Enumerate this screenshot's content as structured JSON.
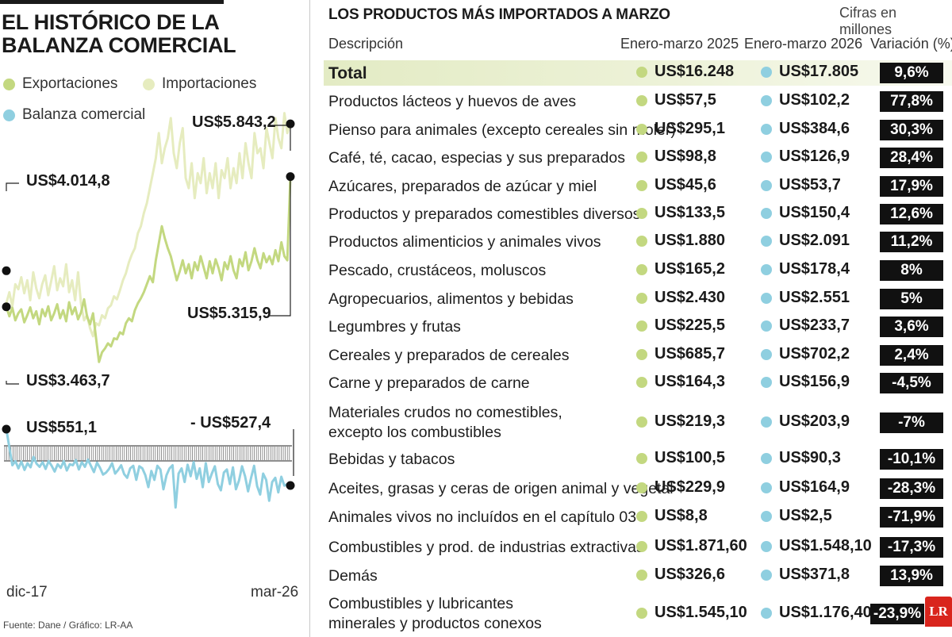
{
  "left": {
    "title_line1": "EL HISTÓRICO DE LA",
    "title_line2": "BALANZA COMERCIAL",
    "legend": {
      "exports": "Exportaciones",
      "imports": "Importaciones",
      "balance": "Balanza comercial"
    },
    "annotations": {
      "imports_last": "US$5.843,2",
      "exports_start": "US$4.014,8",
      "exports_last": "US$5.315,9",
      "exports_min": "US$3.463,7",
      "balance_start": "US$551,1",
      "balance_last": "- US$527,4"
    },
    "x_start": "dic-17",
    "x_end": "mar-26",
    "source": "Fuente: Dane / Gráfico: LR-AA"
  },
  "right": {
    "title": "LOS PRODUCTOS MÁS IMPORTADOS A MARZO",
    "units": "Cifras en millones",
    "headers": {
      "description": "Descripción",
      "col_2025": "Enero-marzo 2025",
      "col_2026": "Enero-marzo 2026",
      "variation": "Variación (%)"
    },
    "logo": "LR"
  },
  "colors": {
    "exports": "#c3d880",
    "imports": "#e6ecbf",
    "balance": "#8fcfe0",
    "variation_bg": "#111111",
    "total_band": "#e3ebc4",
    "logo": "#d9251d"
  },
  "chart_data": [
    {
      "type": "line",
      "title": "EL HISTÓRICO DE LA BALANZA COMERCIAL",
      "x_range": [
        "dic-17",
        "mar-26"
      ],
      "series": [
        {
          "name": "Exportaciones",
          "start": 4014.8,
          "min": 3463.7,
          "last": 5315.9,
          "values": [
            4014.8,
            3920,
            4005,
            3880,
            3950,
            3990,
            3860,
            3930,
            4010,
            3900,
            3970,
            3840,
            3990,
            3920,
            4020,
            3880,
            3950,
            4040,
            3900,
            3980,
            3870,
            4060,
            3940,
            4010,
            3890,
            3960,
            4090,
            3920,
            3840,
            3950,
            3700,
            3463.7,
            3560,
            3600,
            3650,
            3620,
            3700,
            3690,
            3760,
            3740,
            3850,
            3900,
            3870,
            3980,
            4050,
            4100,
            4160,
            4240,
            4320,
            4260,
            4480,
            4650,
            4820,
            4700,
            4600,
            4520,
            4400,
            4280,
            4370,
            4480,
            4350,
            4440,
            4300,
            4460,
            4380,
            4520,
            4410,
            4300,
            4470,
            4350,
            4490,
            4400,
            4280,
            4460,
            4390,
            4520,
            4380,
            4300,
            4490,
            4420,
            4560,
            4380,
            4470,
            4600,
            4480,
            4400,
            4550,
            4460,
            4520,
            4440,
            4580,
            4470,
            4660,
            4520,
            4480,
            5315.9
          ]
        },
        {
          "name": "Importaciones",
          "last": 5843.2,
          "values": [
            4050,
            4160,
            4020,
            4240,
            4190,
            4310,
            4150,
            4280,
            4080,
            4360,
            4200,
            4100,
            4240,
            4330,
            4130,
            4270,
            4420,
            4180,
            4300,
            4220,
            4440,
            4160,
            4280,
            4080,
            4360,
            4040,
            3880,
            3930,
            3800,
            3720,
            3850,
            3830,
            3930,
            3900,
            4000,
            4030,
            4120,
            4090,
            4180,
            4280,
            4350,
            4460,
            4540,
            4600,
            4750,
            4820,
            4950,
            5050,
            5200,
            5350,
            5500,
            5750,
            5450,
            5600,
            5700,
            5900,
            5550,
            5400,
            5650,
            5800,
            5300,
            5200,
            5450,
            5100,
            5350,
            5250,
            5500,
            5150,
            5350,
            5200,
            5450,
            5100,
            5380,
            5300,
            5500,
            5200,
            5400,
            5250,
            5550,
            5300,
            5650,
            5450,
            5300,
            5750,
            5550,
            5600,
            5400,
            5800,
            5650,
            5500,
            5900,
            5700,
            5600,
            5950,
            5750,
            5843.2
          ]
        },
        {
          "name": "Balanza comercial",
          "start": 551.1,
          "last": -527.4,
          "values": [
            551.1,
            200,
            -140,
            -60,
            -200,
            -70,
            -230,
            -100,
            -180,
            20,
            -110,
            -170,
            -80,
            -210,
            -60,
            -150,
            -260,
            -120,
            -190,
            -60,
            -240,
            -120,
            -140,
            -40,
            -220,
            -80,
            -170,
            -30,
            -150,
            -270,
            -90,
            -190,
            -320,
            -280,
            -210,
            -100,
            -300,
            -230,
            -140,
            -310,
            -380,
            -200,
            -150,
            -420,
            -160,
            -200,
            -330,
            -560,
            -250,
            -420,
            -150,
            -220,
            -600,
            -330,
            -200,
            -140,
            -950,
            -300,
            -200,
            -460,
            -130,
            -350,
            -80,
            -400,
            -200,
            -560,
            -100,
            -460,
            -300,
            -160,
            -500,
            -620,
            -280,
            -220,
            -500,
            -180,
            -600,
            -430,
            -160,
            -350,
            -640,
            -380,
            -150,
            -540,
            -700,
            -300,
            -420,
            -820,
            -460,
            -380,
            -660,
            -360,
            -530,
            -500,
            -527.4
          ]
        }
      ]
    },
    {
      "type": "table",
      "title": "LOS PRODUCTOS MÁS IMPORTADOS A MARZO",
      "columns": [
        "Descripción",
        "Enero-marzo 2025",
        "Enero-marzo 2026",
        "Variación (%)"
      ],
      "rows": [
        {
          "desc": [
            "Total"
          ],
          "v2025": "US$16.248",
          "v2026": "US$17.805",
          "var": "9,6%",
          "total": true
        },
        {
          "desc": [
            "Productos lácteos y huevos de aves"
          ],
          "v2025": "US$57,5",
          "v2026": "US$102,2",
          "var": "77,8%"
        },
        {
          "desc": [
            "Pienso para animales (excepto cereales sin moler)"
          ],
          "v2025": "US$295,1",
          "v2026": "US$384,6",
          "var": "30,3%"
        },
        {
          "desc": [
            "Café, té, cacao, especias y sus preparados"
          ],
          "v2025": "US$98,8",
          "v2026": "US$126,9",
          "var": "28,4%"
        },
        {
          "desc": [
            "Azúcares, preparados de azúcar y miel"
          ],
          "v2025": "US$45,6",
          "v2026": "US$53,7",
          "var": "17,9%"
        },
        {
          "desc": [
            "Productos y preparados comestibles diversos"
          ],
          "v2025": "US$133,5",
          "v2026": "US$150,4",
          "var": "12,6%"
        },
        {
          "desc": [
            "Productos alimenticios y animales vivos"
          ],
          "v2025": "US$1.880",
          "v2026": "US$2.091",
          "var": "11,2%"
        },
        {
          "desc": [
            "Pescado, crustáceos, moluscos"
          ],
          "v2025": "US$165,2",
          "v2026": "US$178,4",
          "var": "8%"
        },
        {
          "desc": [
            "Agropecuarios, alimentos y bebidas"
          ],
          "v2025": "US$2.430",
          "v2026": "US$2.551",
          "var": "5%"
        },
        {
          "desc": [
            "Legumbres y frutas"
          ],
          "v2025": "US$225,5",
          "v2026": "US$233,7",
          "var": "3,6%"
        },
        {
          "desc": [
            "Cereales y preparados de cereales"
          ],
          "v2025": "US$685,7",
          "v2026": "US$702,2",
          "var": "2,4%"
        },
        {
          "desc": [
            "Carne y preparados de carne"
          ],
          "v2025": "US$164,3",
          "v2026": "US$156,9",
          "var": "-4,5%"
        },
        {
          "desc": [
            "Materiales crudos no comestibles,",
            "excepto los combustibles"
          ],
          "v2025": "US$219,3",
          "v2026": "US$203,9",
          "var": "-7%"
        },
        {
          "desc": [
            "Bebidas y tabacos"
          ],
          "v2025": "US$100,5",
          "v2026": "US$90,3",
          "var": "-10,1%"
        },
        {
          "desc": [
            "Aceites, grasas y ceras de origen animal y vegetal"
          ],
          "v2025": "US$229,9",
          "v2026": "US$164,9",
          "var": "-28,3%"
        },
        {
          "desc": [
            "Animales vivos no incluídos en el capítulo 03"
          ],
          "v2025": "US$8,8",
          "v2026": "US$2,5",
          "var": "-71,9%"
        },
        {
          "desc": [
            "Combustibles y prod. de industrias extractivas"
          ],
          "v2025": "US$1.871,60",
          "v2026": "US$1.548,10",
          "var": "-17,3%"
        },
        {
          "desc": [
            "Demás"
          ],
          "v2025": "US$326,6",
          "v2026": "US$371,8",
          "var": "13,9%"
        },
        {
          "desc": [
            "Combustibles y lubricantes",
            "minerales y productos conexos"
          ],
          "v2025": "US$1.545,10",
          "v2026": "US$1.176,40",
          "var": "-23,9%"
        }
      ]
    }
  ]
}
